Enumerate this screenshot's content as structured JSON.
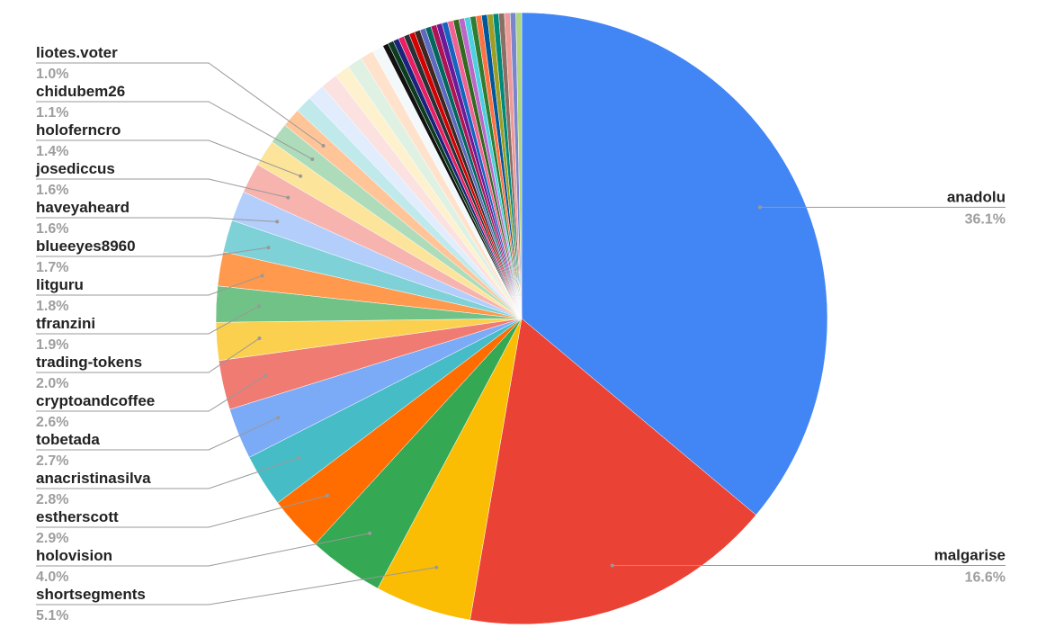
{
  "chart_data": {
    "type": "pie",
    "categories": [
      "anadolu",
      "malgarise",
      "shortsegments",
      "holovision",
      "estherscott",
      "anacristinasilva",
      "tobetada",
      "cryptoandcoffee",
      "trading-tokens",
      "tfranzini",
      "litguru",
      "blueeyes8960",
      "haveyaheard",
      "josediccus",
      "holoferncro",
      "chidubem26",
      "liotes.voter",
      null,
      null,
      null,
      null,
      null,
      null,
      null,
      null,
      null,
      null,
      null,
      null,
      null,
      null,
      null,
      null,
      null,
      null,
      null,
      null,
      null,
      null,
      null,
      null,
      null,
      null,
      null,
      null,
      null,
      null,
      null,
      null
    ],
    "values": [
      36.1,
      16.6,
      5.1,
      4.0,
      2.9,
      2.8,
      2.7,
      2.6,
      2.0,
      1.9,
      1.8,
      1.7,
      1.6,
      1.6,
      1.4,
      1.1,
      1.0,
      0.9,
      0.9,
      0.9,
      0.8,
      0.8,
      0.7,
      0.6,
      0.3,
      0.3,
      0.3,
      0.3,
      0.3,
      0.3,
      0.3,
      0.3,
      0.3,
      0.3,
      0.3,
      0.3,
      0.3,
      0.3,
      0.3,
      0.3,
      0.3,
      0.3,
      0.3,
      0.3,
      0.3,
      0.3,
      0.3,
      0.3,
      0.3
    ],
    "value_labels": [
      "36.1%",
      "16.6%",
      "5.1%",
      "4.0%",
      "2.9%",
      "2.8%",
      "2.7%",
      "2.6%",
      "2.0%",
      "1.9%",
      "1.8%",
      "1.7%",
      "1.6%",
      "1.6%",
      "1.4%",
      "1.1%",
      "1.0%",
      null,
      null,
      null,
      null,
      null,
      null,
      null,
      null,
      null,
      null,
      null,
      null,
      null,
      null,
      null,
      null,
      null,
      null,
      null,
      null,
      null,
      null,
      null,
      null,
      null,
      null,
      null,
      null,
      null,
      null,
      null,
      null
    ],
    "colors": [
      "#4285f4",
      "#ea4335",
      "#fbbc04",
      "#34a853",
      "#ff6d01",
      "#46bdc6",
      "#7baaf7",
      "#f07b72",
      "#fcd04f",
      "#71c287",
      "#ff994d",
      "#7ed1d7",
      "#b3cefb",
      "#f7b4ae",
      "#fde49b",
      "#aedcba",
      "#ffc599",
      "#c0e9ec",
      "#e1ecfd",
      "#fbe1df",
      "#fef1cd",
      "#def1e3",
      "#ffe2cc",
      "#f3f9fa",
      "#111111",
      "#0b3d1e",
      "#1a237e",
      "#e91e63",
      "#263238",
      "#d50000",
      "#3e2723",
      "#5c6bc0",
      "#00695c",
      "#ad1457",
      "#6a1b9a",
      "#1565c0",
      "#f06292",
      "#33691e",
      "#ba68c8",
      "#4dd0e1",
      "#2e7d32",
      "#ff7043",
      "#01579b",
      "#9e9d24",
      "#00897b",
      "#8d6e63",
      "#ef9a9a",
      "#7986cb",
      "#aed581"
    ]
  }
}
